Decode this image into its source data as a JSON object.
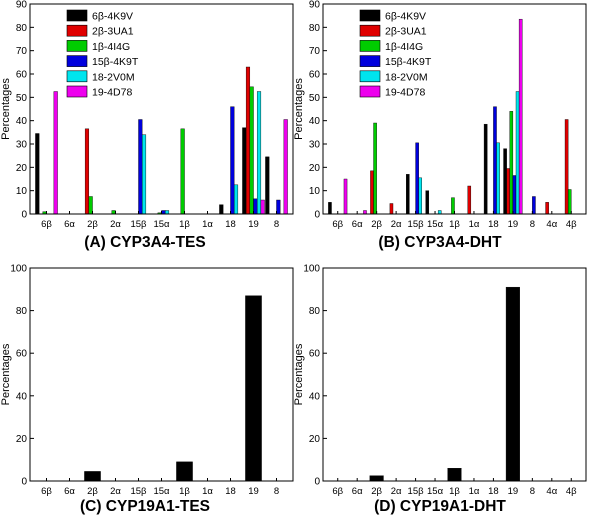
{
  "chart_data": [
    {
      "type": "bar",
      "caption": "(A) CYP3A4-TES",
      "ylabel": "Percentages",
      "ylim": [
        0,
        90
      ],
      "yticks": [
        0,
        10,
        20,
        30,
        40,
        50,
        60,
        70,
        80,
        90
      ],
      "categories": [
        "6β",
        "6α",
        "2β",
        "2α",
        "15β",
        "15α",
        "1β",
        "1α",
        "18",
        "19",
        "8"
      ],
      "legend": "top-left",
      "series": [
        {
          "name": "6β-4K9V",
          "color": "#000000",
          "values": [
            34.5,
            0,
            0,
            0,
            0,
            0,
            0,
            0,
            4,
            37,
            24.5
          ]
        },
        {
          "name": "2β-3UA1",
          "color": "#e00000",
          "values": [
            0,
            0,
            36.5,
            0,
            0,
            0,
            0,
            0,
            0,
            63,
            0
          ]
        },
        {
          "name": "1β-4I4G",
          "color": "#00cc00",
          "values": [
            1,
            0,
            7.5,
            1.5,
            0,
            0.5,
            36.5,
            0,
            0,
            54.5,
            0
          ]
        },
        {
          "name": "15β-4K9T",
          "color": "#0000dd",
          "values": [
            0,
            0,
            0,
            0,
            40.5,
            1.5,
            0,
            0,
            46,
            6.5,
            6
          ]
        },
        {
          "name": "18-2V0M",
          "color": "#00e5ee",
          "values": [
            0,
            0,
            0,
            0,
            34,
            1.5,
            0,
            0,
            12.5,
            52.5,
            0
          ]
        },
        {
          "name": "19-4D78",
          "color": "#ee00ee",
          "values": [
            52.5,
            0,
            0,
            0,
            0,
            0,
            0,
            0,
            0,
            6,
            40.5
          ]
        }
      ]
    },
    {
      "type": "bar",
      "caption": "(B) CYP3A4-DHT",
      "ylabel": "Percentages",
      "ylim": [
        0,
        90
      ],
      "yticks": [
        0,
        10,
        20,
        30,
        40,
        50,
        60,
        70,
        80,
        90
      ],
      "categories": [
        "6β",
        "6α",
        "2β",
        "2α",
        "15β",
        "15α",
        "1β",
        "1α",
        "18",
        "19",
        "8",
        "4α",
        "4β"
      ],
      "legend": "top-left",
      "series": [
        {
          "name": "6β-4K9V",
          "color": "#000000",
          "values": [
            5,
            0,
            0,
            0,
            17,
            10,
            0,
            0,
            38.5,
            28,
            0,
            0,
            0
          ]
        },
        {
          "name": "2β-3UA1",
          "color": "#e00000",
          "values": [
            0,
            0,
            18.5,
            4.5,
            0,
            0,
            0,
            12,
            0,
            19.5,
            0,
            5,
            40.5
          ]
        },
        {
          "name": "1β-4I4G",
          "color": "#00cc00",
          "values": [
            0,
            0,
            39,
            0,
            0,
            0,
            7,
            0,
            0,
            44,
            0,
            0,
            10.5
          ]
        },
        {
          "name": "15β-4K9T",
          "color": "#0000dd",
          "values": [
            0,
            0,
            0,
            0,
            30.5,
            0,
            0,
            0,
            46,
            16.5,
            7.5,
            0,
            0
          ]
        },
        {
          "name": "18-2V0M",
          "color": "#00e5ee",
          "values": [
            0,
            0,
            0,
            0,
            15.5,
            1.5,
            0,
            0,
            30.5,
            52.5,
            0,
            0,
            0
          ]
        },
        {
          "name": "19-4D78",
          "color": "#ee00ee",
          "values": [
            15,
            1.5,
            0,
            0,
            0,
            0,
            0,
            0,
            0,
            83.5,
            0,
            0,
            0
          ]
        }
      ]
    },
    {
      "type": "bar",
      "caption": "(C) CYP19A1-TES",
      "ylabel": "Percentages",
      "ylim": [
        0,
        100
      ],
      "yticks": [
        0,
        20,
        40,
        60,
        80,
        100
      ],
      "categories": [
        "6β",
        "6α",
        "2β",
        "2α",
        "15β",
        "15α",
        "1β",
        "1α",
        "18",
        "19",
        "8"
      ],
      "series": [
        {
          "color": "#000000",
          "values": [
            0,
            0,
            4.5,
            0,
            0,
            0,
            9,
            0,
            0,
            87,
            0
          ]
        }
      ]
    },
    {
      "type": "bar",
      "caption": "(D) CYP19A1-DHT",
      "ylabel": "Percentages",
      "ylim": [
        0,
        100
      ],
      "yticks": [
        0,
        20,
        40,
        60,
        80,
        100
      ],
      "categories": [
        "6β",
        "6α",
        "2β",
        "2α",
        "15β",
        "15α",
        "1β",
        "1α",
        "18",
        "19",
        "8",
        "4α",
        "4β"
      ],
      "series": [
        {
          "color": "#000000",
          "values": [
            0,
            0,
            2.5,
            0,
            0,
            0,
            6,
            0,
            0,
            91,
            0,
            0,
            0
          ]
        }
      ]
    }
  ]
}
